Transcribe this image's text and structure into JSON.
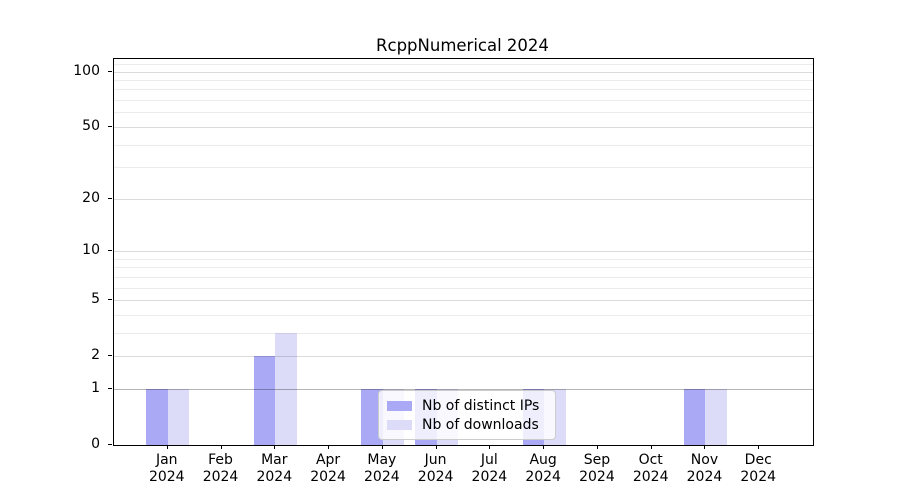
{
  "chart_data": {
    "type": "bar",
    "title": "RcppNumerical 2024",
    "xlabel": "",
    "ylabel": "",
    "year_label": "2024",
    "categories": [
      "Jan",
      "Feb",
      "Mar",
      "Apr",
      "May",
      "Jun",
      "Jul",
      "Aug",
      "Sep",
      "Oct",
      "Nov",
      "Dec"
    ],
    "series": [
      {
        "name": "Nb of distinct IPs",
        "color": "#a9a9f5",
        "values": [
          1,
          0,
          2,
          0,
          1,
          1,
          0,
          1,
          0,
          0,
          1,
          0
        ]
      },
      {
        "name": "Nb of downloads",
        "color": "#dcdcf8",
        "values": [
          1,
          0,
          3,
          0,
          1,
          1,
          0,
          1,
          0,
          0,
          1,
          0
        ]
      }
    ],
    "yscale": "log1p",
    "ylim": [
      0,
      117
    ],
    "y_major_ticks": [
      0,
      1,
      2,
      5,
      10,
      20,
      50,
      100
    ],
    "y_minor_gridlines": [
      3,
      4,
      6,
      7,
      8,
      9,
      30,
      40,
      60,
      70,
      80,
      90,
      110
    ],
    "grid": true,
    "grid_on_top_of_bars": true,
    "legend_position": "lower center"
  },
  "colors": {
    "minor_gridline": "rgba(0,0,0,0.075)",
    "major_gridline": "rgba(0,0,0,0.14)",
    "baseline_one_gridline": "rgba(0,0,0,0.29)",
    "axis_spine": "#000000",
    "legend_border": "#cccccc"
  }
}
